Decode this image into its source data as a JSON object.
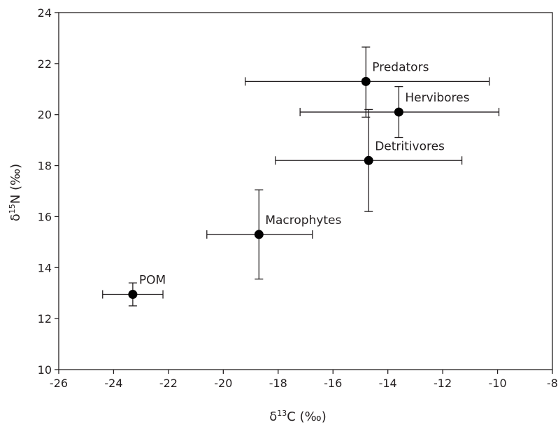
{
  "chart_data": {
    "type": "scatter",
    "xlabel_main": "δ",
    "xlabel_sup": "13",
    "xlabel_rest": "C (‰)",
    "ylabel_main": "δ",
    "ylabel_sup": "15",
    "ylabel_rest": "N (‰)",
    "xlim": [
      -26,
      -8
    ],
    "ylim": [
      10,
      24
    ],
    "xticks": [
      -26,
      -24,
      -22,
      -20,
      -18,
      -16,
      -14,
      -12,
      -10,
      -8
    ],
    "yticks": [
      10,
      12,
      14,
      16,
      18,
      20,
      22,
      24
    ],
    "grid": false,
    "points": [
      {
        "label": "Predators",
        "x": -14.8,
        "y": 21.3,
        "x_err_low": -19.2,
        "x_err_high": -10.3,
        "y_err_low": 19.9,
        "y_err_high": 22.65
      },
      {
        "label": "Hervibores",
        "x": -13.6,
        "y": 20.1,
        "x_err_low": -17.2,
        "x_err_high": -9.95,
        "y_err_low": 19.1,
        "y_err_high": 21.1
      },
      {
        "label": "Detritivores",
        "x": -14.7,
        "y": 18.2,
        "x_err_low": -18.1,
        "x_err_high": -11.3,
        "y_err_low": 16.2,
        "y_err_high": 20.2
      },
      {
        "label": "Macrophytes",
        "x": -18.7,
        "y": 15.3,
        "x_err_low": -20.6,
        "x_err_high": -16.75,
        "y_err_low": 13.55,
        "y_err_high": 17.05
      },
      {
        "label": "POM",
        "x": -23.3,
        "y": 12.95,
        "x_err_low": -24.4,
        "x_err_high": -22.2,
        "y_err_low": 12.5,
        "y_err_high": 13.4
      }
    ]
  }
}
